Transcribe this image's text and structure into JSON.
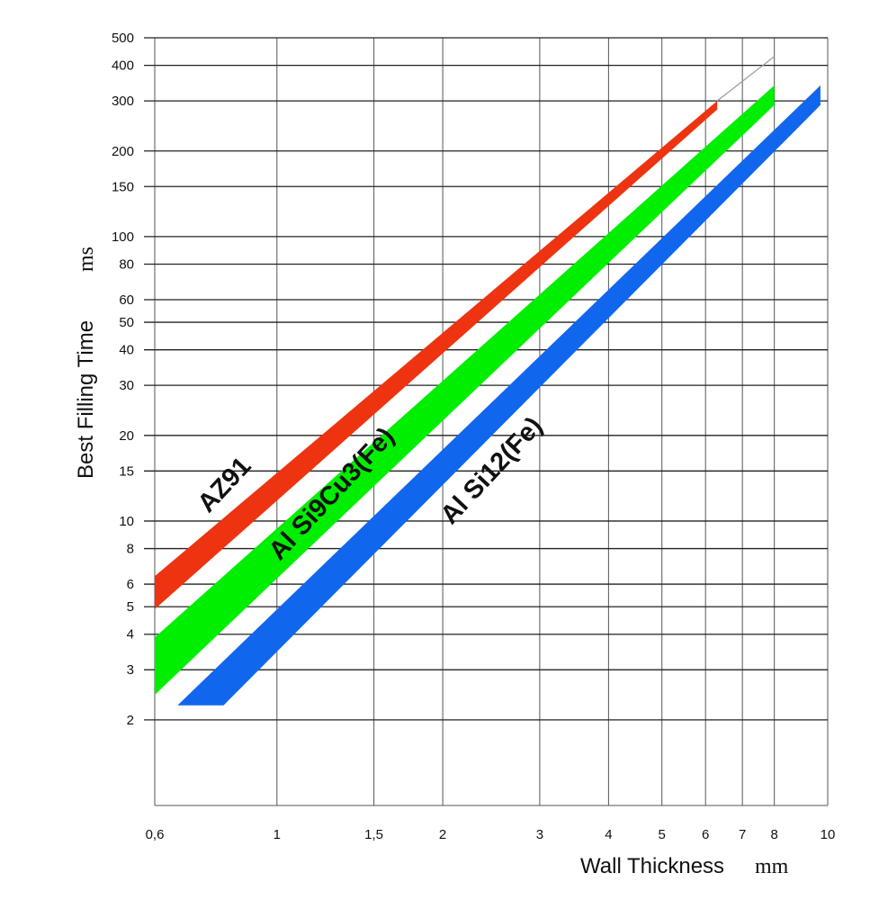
{
  "chart_data": {
    "type": "area",
    "xscale": "log",
    "yscale": "log",
    "x_tick_labels": [
      "0,6",
      "1",
      "1,5",
      "2",
      "3",
      "4",
      "5",
      "6",
      "7",
      "8",
      "10"
    ],
    "x_tick_values": [
      0.6,
      1,
      1.5,
      2,
      3,
      4,
      5,
      6,
      7,
      8,
      10
    ],
    "y_tick_labels": [
      "2",
      "3",
      "4",
      "5",
      "6",
      "8",
      "10",
      "15",
      "20",
      "30",
      "40",
      "50",
      "60",
      "80",
      "100",
      "150",
      "200",
      "300",
      "400",
      "500"
    ],
    "y_tick_values": [
      2,
      3,
      4,
      5,
      6,
      8,
      10,
      15,
      20,
      30,
      40,
      50,
      60,
      80,
      100,
      150,
      200,
      300,
      400,
      500
    ],
    "xlim": [
      0.6,
      10
    ],
    "ylim": [
      1,
      500
    ],
    "grid": true,
    "xlabel": "Wall Thickness",
    "xlabel_unit": "mm",
    "ylabel": "Best Filling Time",
    "ylabel_unit": "ms",
    "series": [
      {
        "name": "AZ91",
        "color": "#ee3311",
        "x_start": 0.6,
        "x_end": 6.3,
        "lower_start": 4.9,
        "upper_start": 6.4,
        "lower_end": 280,
        "upper_end": 300,
        "extension_x_end": 8,
        "extension_y_end": 430
      },
      {
        "name": "Al Si9Cu3(Fe)",
        "color": "#00ee00",
        "x_start": 0.6,
        "x_end": 8,
        "lower_start": 2.45,
        "upper_start": 3.9,
        "lower_end": 290,
        "upper_end": 340
      },
      {
        "name": "Al Si12(Fe)",
        "color": "#1166ee",
        "x_start_bottom": 0.66,
        "x_start_top": 0.8,
        "y_start": 2.25,
        "x_end": 9.7,
        "lower_end": 290,
        "upper_end": 340
      }
    ]
  }
}
